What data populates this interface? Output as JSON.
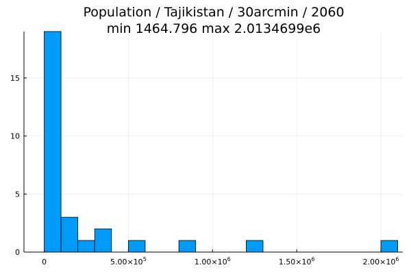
{
  "chart_data": {
    "type": "bar",
    "title": "Population / Tajikistan / 30arcmin / 2060",
    "subtitle": "min 1464.796  max 2.0134699e6",
    "xlabel": "",
    "ylabel": "",
    "xlim": [
      -120000,
      2130000
    ],
    "ylim": [
      0,
      19
    ],
    "grid": true,
    "legend": "none",
    "bar_color": "#009af9",
    "bin_width": 100000,
    "bins": [
      {
        "x0": 0,
        "x1": 100000,
        "count": 19
      },
      {
        "x0": 100000,
        "x1": 200000,
        "count": 3
      },
      {
        "x0": 200000,
        "x1": 300000,
        "count": 1
      },
      {
        "x0": 300000,
        "x1": 400000,
        "count": 2
      },
      {
        "x0": 500000,
        "x1": 600000,
        "count": 1
      },
      {
        "x0": 800000,
        "x1": 900000,
        "count": 1
      },
      {
        "x0": 1200000,
        "x1": 1300000,
        "count": 1
      },
      {
        "x0": 2000000,
        "x1": 2100000,
        "count": 1
      }
    ],
    "x_ticks": [
      {
        "value": 0,
        "mantissa": "0",
        "exp": ""
      },
      {
        "value": 500000,
        "mantissa": "5.00×10",
        "exp": "5"
      },
      {
        "value": 1000000,
        "mantissa": "1.00×10",
        "exp": "6"
      },
      {
        "value": 1500000,
        "mantissa": "1.50×10",
        "exp": "6"
      },
      {
        "value": 2000000,
        "mantissa": "2.00×10",
        "exp": "6"
      }
    ],
    "y_ticks": [
      {
        "value": 0,
        "label": "0"
      },
      {
        "value": 5,
        "label": "5"
      },
      {
        "value": 10,
        "label": "10"
      },
      {
        "value": 15,
        "label": "15"
      }
    ]
  }
}
